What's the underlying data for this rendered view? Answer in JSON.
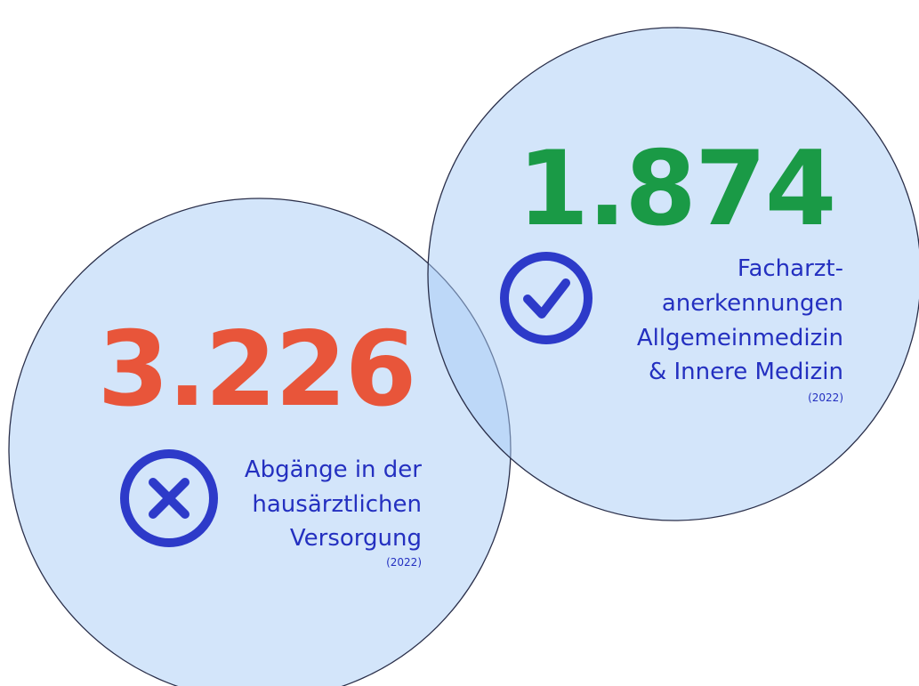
{
  "circles": [
    {
      "number": "3.226",
      "lines": [
        "Abgänge in der",
        "hausärztlichen",
        "Versorgung"
      ],
      "year": "(2022)"
    },
    {
      "number": "1.874",
      "lines": [
        "Facharzt-",
        "anerkennungen",
        "Allgemeinmedizin",
        "& Innere Medizin"
      ],
      "year": "(2022)"
    }
  ]
}
